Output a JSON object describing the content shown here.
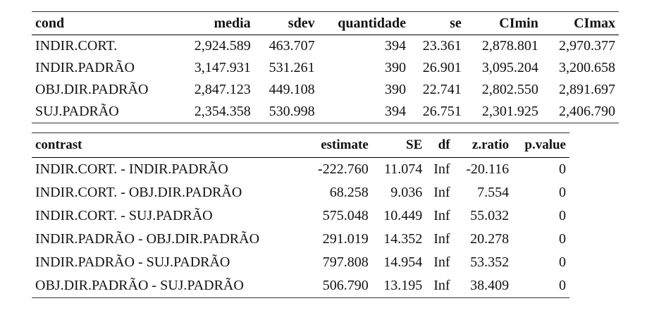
{
  "table1": {
    "headers": [
      "cond",
      "media",
      "sdev",
      "quantidade",
      "se",
      "CImin",
      "CImax"
    ],
    "rows": [
      [
        "INDIR.CORT.",
        "2,924.589",
        "463.707",
        "394",
        "23.361",
        "2,878.801",
        "2,970.377"
      ],
      [
        "INDIR.PADRÃO",
        "3,147.931",
        "531.261",
        "390",
        "26.901",
        "3,095.204",
        "3,200.658"
      ],
      [
        "OBJ.DIR.PADRÃO",
        "2,847.123",
        "449.108",
        "390",
        "22.741",
        "2,802.550",
        "2,891.697"
      ],
      [
        "SUJ.PADRÃO",
        "2,354.358",
        "530.998",
        "394",
        "26.751",
        "2,301.925",
        "2,406.790"
      ]
    ]
  },
  "table2": {
    "headers": [
      "contrast",
      "estimate",
      "SE",
      "df",
      "z.ratio",
      "p.value"
    ],
    "rows": [
      [
        "INDIR.CORT. - INDIR.PADRÃO",
        "-222.760",
        "11.074",
        "Inf",
        "-20.116",
        "0"
      ],
      [
        "INDIR.CORT. - OBJ.DIR.PADRÃO",
        "68.258",
        "9.036",
        "Inf",
        "7.554",
        "0"
      ],
      [
        "INDIR.CORT. - SUJ.PADRÃO",
        "575.048",
        "10.449",
        "Inf",
        "55.032",
        "0"
      ],
      [
        "INDIR.PADRÃO - OBJ.DIR.PADRÃO",
        "291.019",
        "14.352",
        "Inf",
        "20.278",
        "0"
      ],
      [
        "INDIR.PADRÃO - SUJ.PADRÃO",
        "797.808",
        "14.954",
        "Inf",
        "53.352",
        "0"
      ],
      [
        "OBJ.DIR.PADRÃO - SUJ.PADRÃO",
        "506.790",
        "13.195",
        "Inf",
        "38.409",
        "0"
      ]
    ]
  }
}
